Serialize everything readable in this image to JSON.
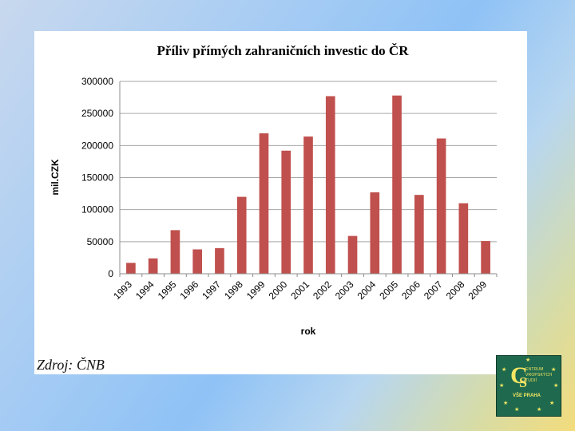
{
  "chart_data": {
    "type": "bar",
    "title": "Příliv přímých zahraničních investic do ČR",
    "xlabel": "rok",
    "ylabel": "mil.CZK",
    "ylim": [
      0,
      300000
    ],
    "yticks": [
      "0",
      "50000",
      "100000",
      "150000",
      "200000",
      "250000",
      "300000"
    ],
    "categories": [
      "1993",
      "1994",
      "1995",
      "1996",
      "1997",
      "1998",
      "1999",
      "2000",
      "2001",
      "2002",
      "2003",
      "2004",
      "2005",
      "2006",
      "2007",
      "2008",
      "2009"
    ],
    "values": [
      17000,
      24000,
      68000,
      38000,
      40000,
      120000,
      219000,
      192000,
      214000,
      277000,
      59000,
      127000,
      278000,
      123000,
      211000,
      110000,
      51000
    ],
    "bar_color": "#c0504d",
    "grid": true,
    "legend": "none"
  },
  "source": "Zdroj: ČNB",
  "logo": {
    "small_text": [
      "ENTRUM",
      "VROPSKÝCH",
      "TUDIÍ"
    ],
    "bottom_text": "VŠE PRAHA"
  }
}
